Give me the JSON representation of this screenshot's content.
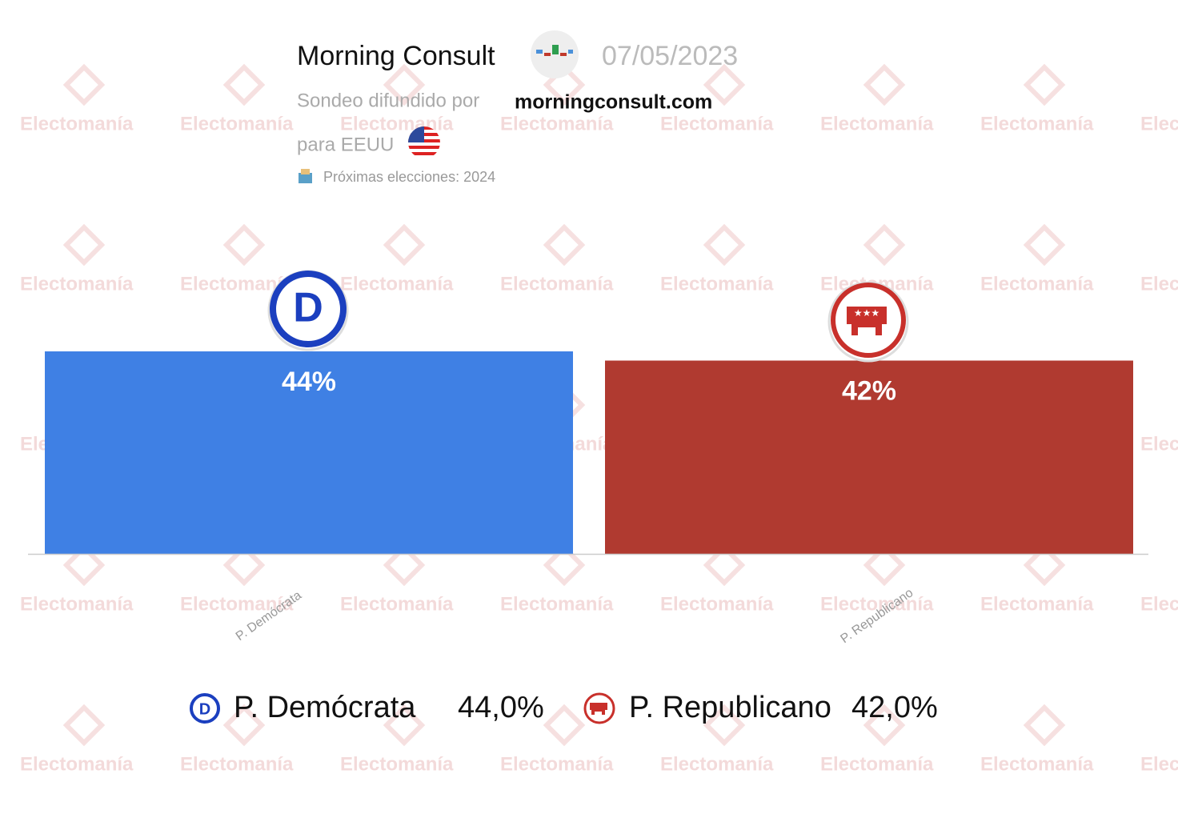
{
  "header": {
    "pollster": "Morning Consult",
    "date": "07/05/2023",
    "spread_by": "Sondeo difundido por",
    "source": "morningconsult.com",
    "region": "para EEUU",
    "next_election": "Próximas elecciones: 2024",
    "watermark": "Electomanía"
  },
  "chart_data": {
    "type": "bar",
    "categories": [
      "P. Demócrata",
      "P. Republicano"
    ],
    "values": [
      44,
      42
    ],
    "value_labels": [
      "44%",
      "42%"
    ],
    "legend_value_labels": [
      "44,0%",
      "42,0%"
    ],
    "colors": [
      "#3f80e4",
      "#b03a30"
    ]
  }
}
